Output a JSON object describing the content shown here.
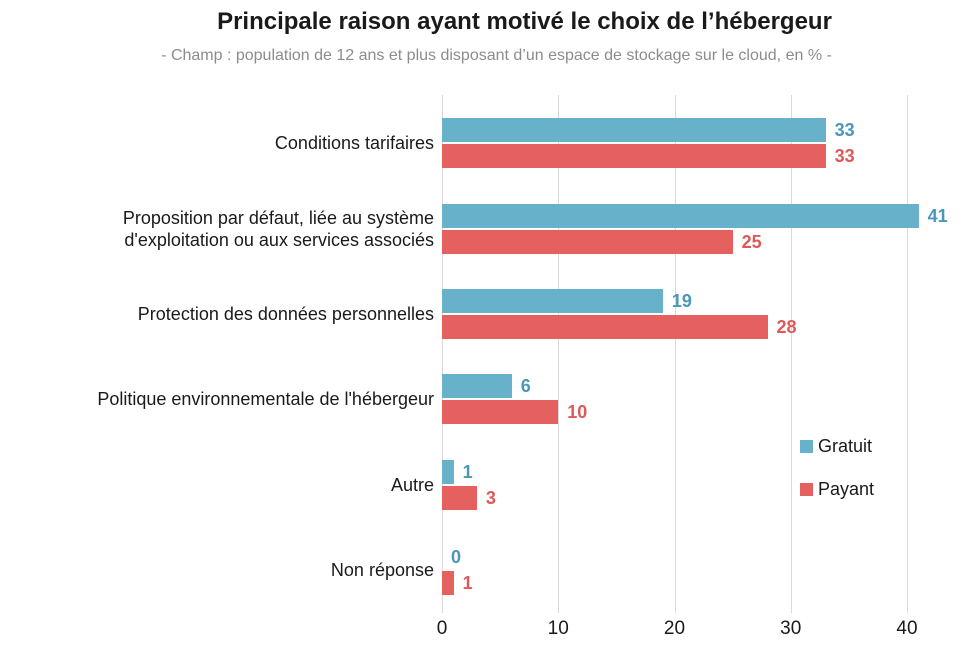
{
  "colors": {
    "background": "#ffffff",
    "gridline": "#d9d9d9",
    "title_text": "#1a1a1a",
    "subtitle_text": "#8c8c8c",
    "axis_text": "#1a1a1a"
  },
  "chart_data": {
    "type": "bar",
    "orientation": "horizontal",
    "title": "Principale raison ayant motivé le choix de l’hébergeur",
    "subtitle": "- Champ : population de 12 ans et plus disposant d’un espace de stockage sur le cloud, en % -",
    "categories": [
      "Conditions tarifaires",
      "Proposition par défaut, liée au système\nd'exploitation ou aux services associés",
      "Protection des données personnelles",
      "Politique environnementale de l'hébergeur",
      "Autre",
      "Non réponse"
    ],
    "series": [
      {
        "name": "Gratuit",
        "color": "#67b1cb",
        "value_color": "#4a97ba",
        "values": [
          33,
          41,
          19,
          6,
          1,
          0
        ]
      },
      {
        "name": "Payant",
        "color": "#e46160",
        "value_color": "#e05858",
        "values": [
          33,
          25,
          28,
          10,
          3,
          1
        ]
      }
    ],
    "xlabel": "",
    "ylabel": "",
    "x_ticks": [
      0,
      10,
      20,
      30,
      40
    ],
    "xlim": [
      0,
      43
    ],
    "grid": "vertical-major",
    "legend_position": "right-middle",
    "value_labels": "outside-end"
  }
}
